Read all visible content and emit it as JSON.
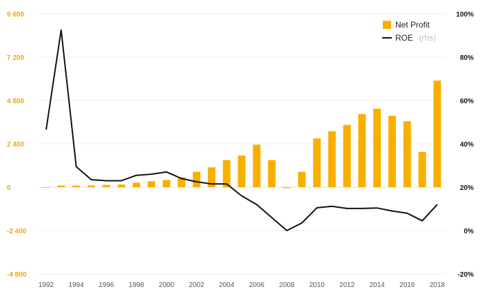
{
  "chart_data": {
    "type": "bar+line",
    "categories": [
      1992,
      1993,
      1994,
      1995,
      1996,
      1997,
      1998,
      1999,
      2000,
      2001,
      2002,
      2003,
      2004,
      2005,
      2006,
      2007,
      2008,
      2009,
      2010,
      2011,
      2012,
      2013,
      2014,
      2015,
      2016,
      2017,
      2018
    ],
    "series": [
      {
        "name": "Net Profit",
        "type": "bar",
        "axis": "left",
        "color": "#f8b000",
        "values": [
          -30,
          90,
          90,
          100,
          130,
          150,
          250,
          330,
          400,
          550,
          850,
          1100,
          1500,
          1750,
          2350,
          1500,
          -50,
          850,
          2700,
          3100,
          3450,
          4050,
          4350,
          3950,
          3650,
          1950,
          5900
        ]
      },
      {
        "name": "ROE",
        "suffix": "(rhs)",
        "type": "line",
        "axis": "right",
        "color": "#111111",
        "values": [
          46.5,
          92.5,
          29.5,
          23.5,
          23,
          23,
          25.5,
          26,
          27,
          24,
          22.5,
          21.5,
          21.5,
          16,
          12,
          6,
          0,
          3.5,
          10.5,
          11.2,
          10.2,
          10.2,
          10.4,
          9,
          8,
          4.5,
          12
        ]
      }
    ],
    "left_axis": {
      "ylim": [
        -4800,
        9600
      ],
      "ticks": [
        -4800,
        -2400,
        0,
        2400,
        4800,
        7200,
        9600
      ],
      "tick_labels": [
        "-4 800",
        "-2 400",
        "0",
        "2 400",
        "4 800",
        "7 200",
        "9 600"
      ],
      "color": "#f0a800"
    },
    "right_axis": {
      "ylim": [
        -20,
        100
      ],
      "ticks": [
        -20,
        0,
        20,
        40,
        60,
        80,
        100
      ],
      "tick_labels": [
        "-20%",
        "0%",
        "20%",
        "40%",
        "60%",
        "80%",
        "100%"
      ],
      "color": "#111111"
    },
    "x_tick_labels": [
      "1992",
      "1994",
      "1996",
      "1998",
      "2000",
      "2002",
      "2004",
      "2006",
      "2008",
      "2010",
      "2012",
      "2014",
      "2016",
      "2018"
    ],
    "legend": {
      "position": "top-right",
      "items": [
        {
          "label": "Net Profit",
          "sub": ""
        },
        {
          "label": "ROE",
          "sub": "(rhs)"
        }
      ]
    },
    "grid": true
  }
}
